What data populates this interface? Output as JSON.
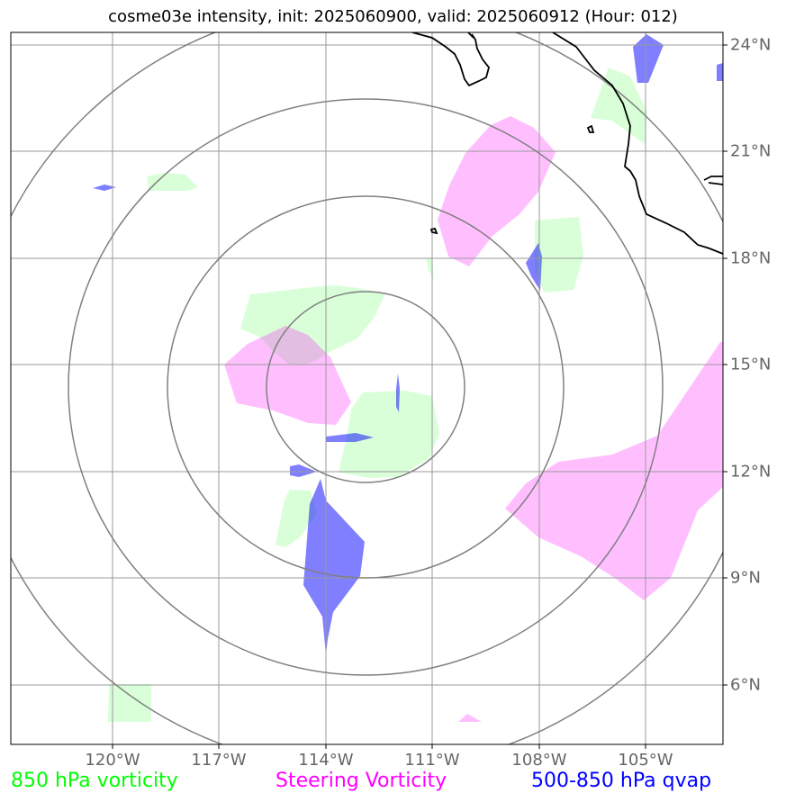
{
  "title": "cosme03e intensity, init: 2025060900, valid: 2025060912 (Hour: 012)",
  "colors": {
    "vorticity_850": "#00ff00",
    "steering_vorticity": "#ff00ff",
    "qvap": "#0000ff",
    "grid": "#999999",
    "rings": "#808080",
    "coast": "#000000",
    "label": "#666666"
  },
  "axes": {
    "lon_labels": [
      "120°W",
      "117°W",
      "114°W",
      "111°W",
      "108°W",
      "105°W"
    ],
    "lat_labels": [
      "24°N",
      "21°N",
      "18°N",
      "15°N",
      "12°N",
      "9°N",
      "6°N"
    ]
  },
  "legend": {
    "vorticity_850": "850 hPa vorticity",
    "steering_vorticity": "Steering Vorticity",
    "qvap": "500-850 hPa qvap"
  }
}
